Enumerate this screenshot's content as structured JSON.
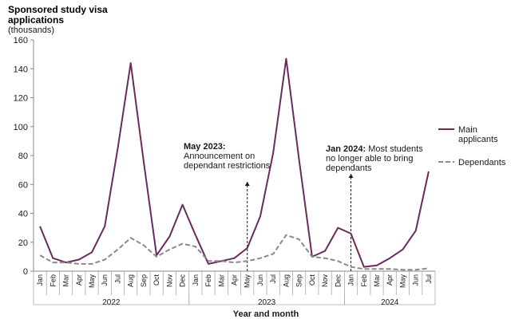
{
  "chart_data": {
    "type": "line",
    "title": "Sponsored study visa applications",
    "ylabel_line1": "Sponsored study visa",
    "ylabel_line2": "applications",
    "ylabel_unit": "(thousands)",
    "xlabel": "Year and month",
    "ylim": [
      0,
      160
    ],
    "yticks": [
      0,
      20,
      40,
      60,
      80,
      100,
      120,
      140,
      160
    ],
    "categories": [
      "Jan",
      "Feb",
      "Mar",
      "Apr",
      "May",
      "Jun",
      "Jul",
      "Aug",
      "Sep",
      "Oct",
      "Nov",
      "Dec",
      "Jan",
      "Feb",
      "Mar",
      "Apr",
      "May",
      "Jun",
      "Jul",
      "Aug",
      "Sep",
      "Oct",
      "Nov",
      "Dec",
      "Jan",
      "Feb",
      "Mar",
      "Apr",
      "May",
      "Jun",
      "Jul"
    ],
    "years": [
      {
        "label": "2022",
        "start": 0,
        "end": 11
      },
      {
        "label": "2023",
        "start": 12,
        "end": 23
      },
      {
        "label": "2024",
        "start": 24,
        "end": 30
      }
    ],
    "series": [
      {
        "name": "Main applicants",
        "legend_line1": "Main",
        "legend_line2": "applicants",
        "color": "#6b2a5e",
        "style": "solid",
        "values": [
          31,
          9,
          6,
          8,
          13,
          31,
          85,
          144,
          76,
          11,
          24,
          46,
          25,
          5,
          7,
          9,
          16,
          38,
          82,
          147,
          77,
          10,
          14,
          30,
          26,
          3,
          4,
          9,
          15,
          28,
          69
        ]
      },
      {
        "name": "Dependants",
        "legend_line1": "Dependants",
        "legend_line2": "",
        "color": "#8a8a8a",
        "style": "dashed",
        "values": [
          11,
          6,
          6,
          5,
          5,
          8,
          15,
          23,
          18,
          10,
          15,
          19,
          17,
          7,
          7,
          6,
          7,
          9,
          12,
          25,
          22,
          10,
          9,
          7,
          3,
          1.5,
          1.5,
          1.5,
          1,
          1,
          2
        ]
      }
    ],
    "annotations": [
      {
        "index": 16,
        "bold": "May 2023:",
        "line1_rest": "",
        "line2": "Announcement on",
        "line3": "dependant restrictions"
      },
      {
        "index": 24,
        "bold": "Jan 2024:",
        "line1_rest": " Most students",
        "line2": "no longer able to bring",
        "line3": "dependants"
      }
    ]
  }
}
